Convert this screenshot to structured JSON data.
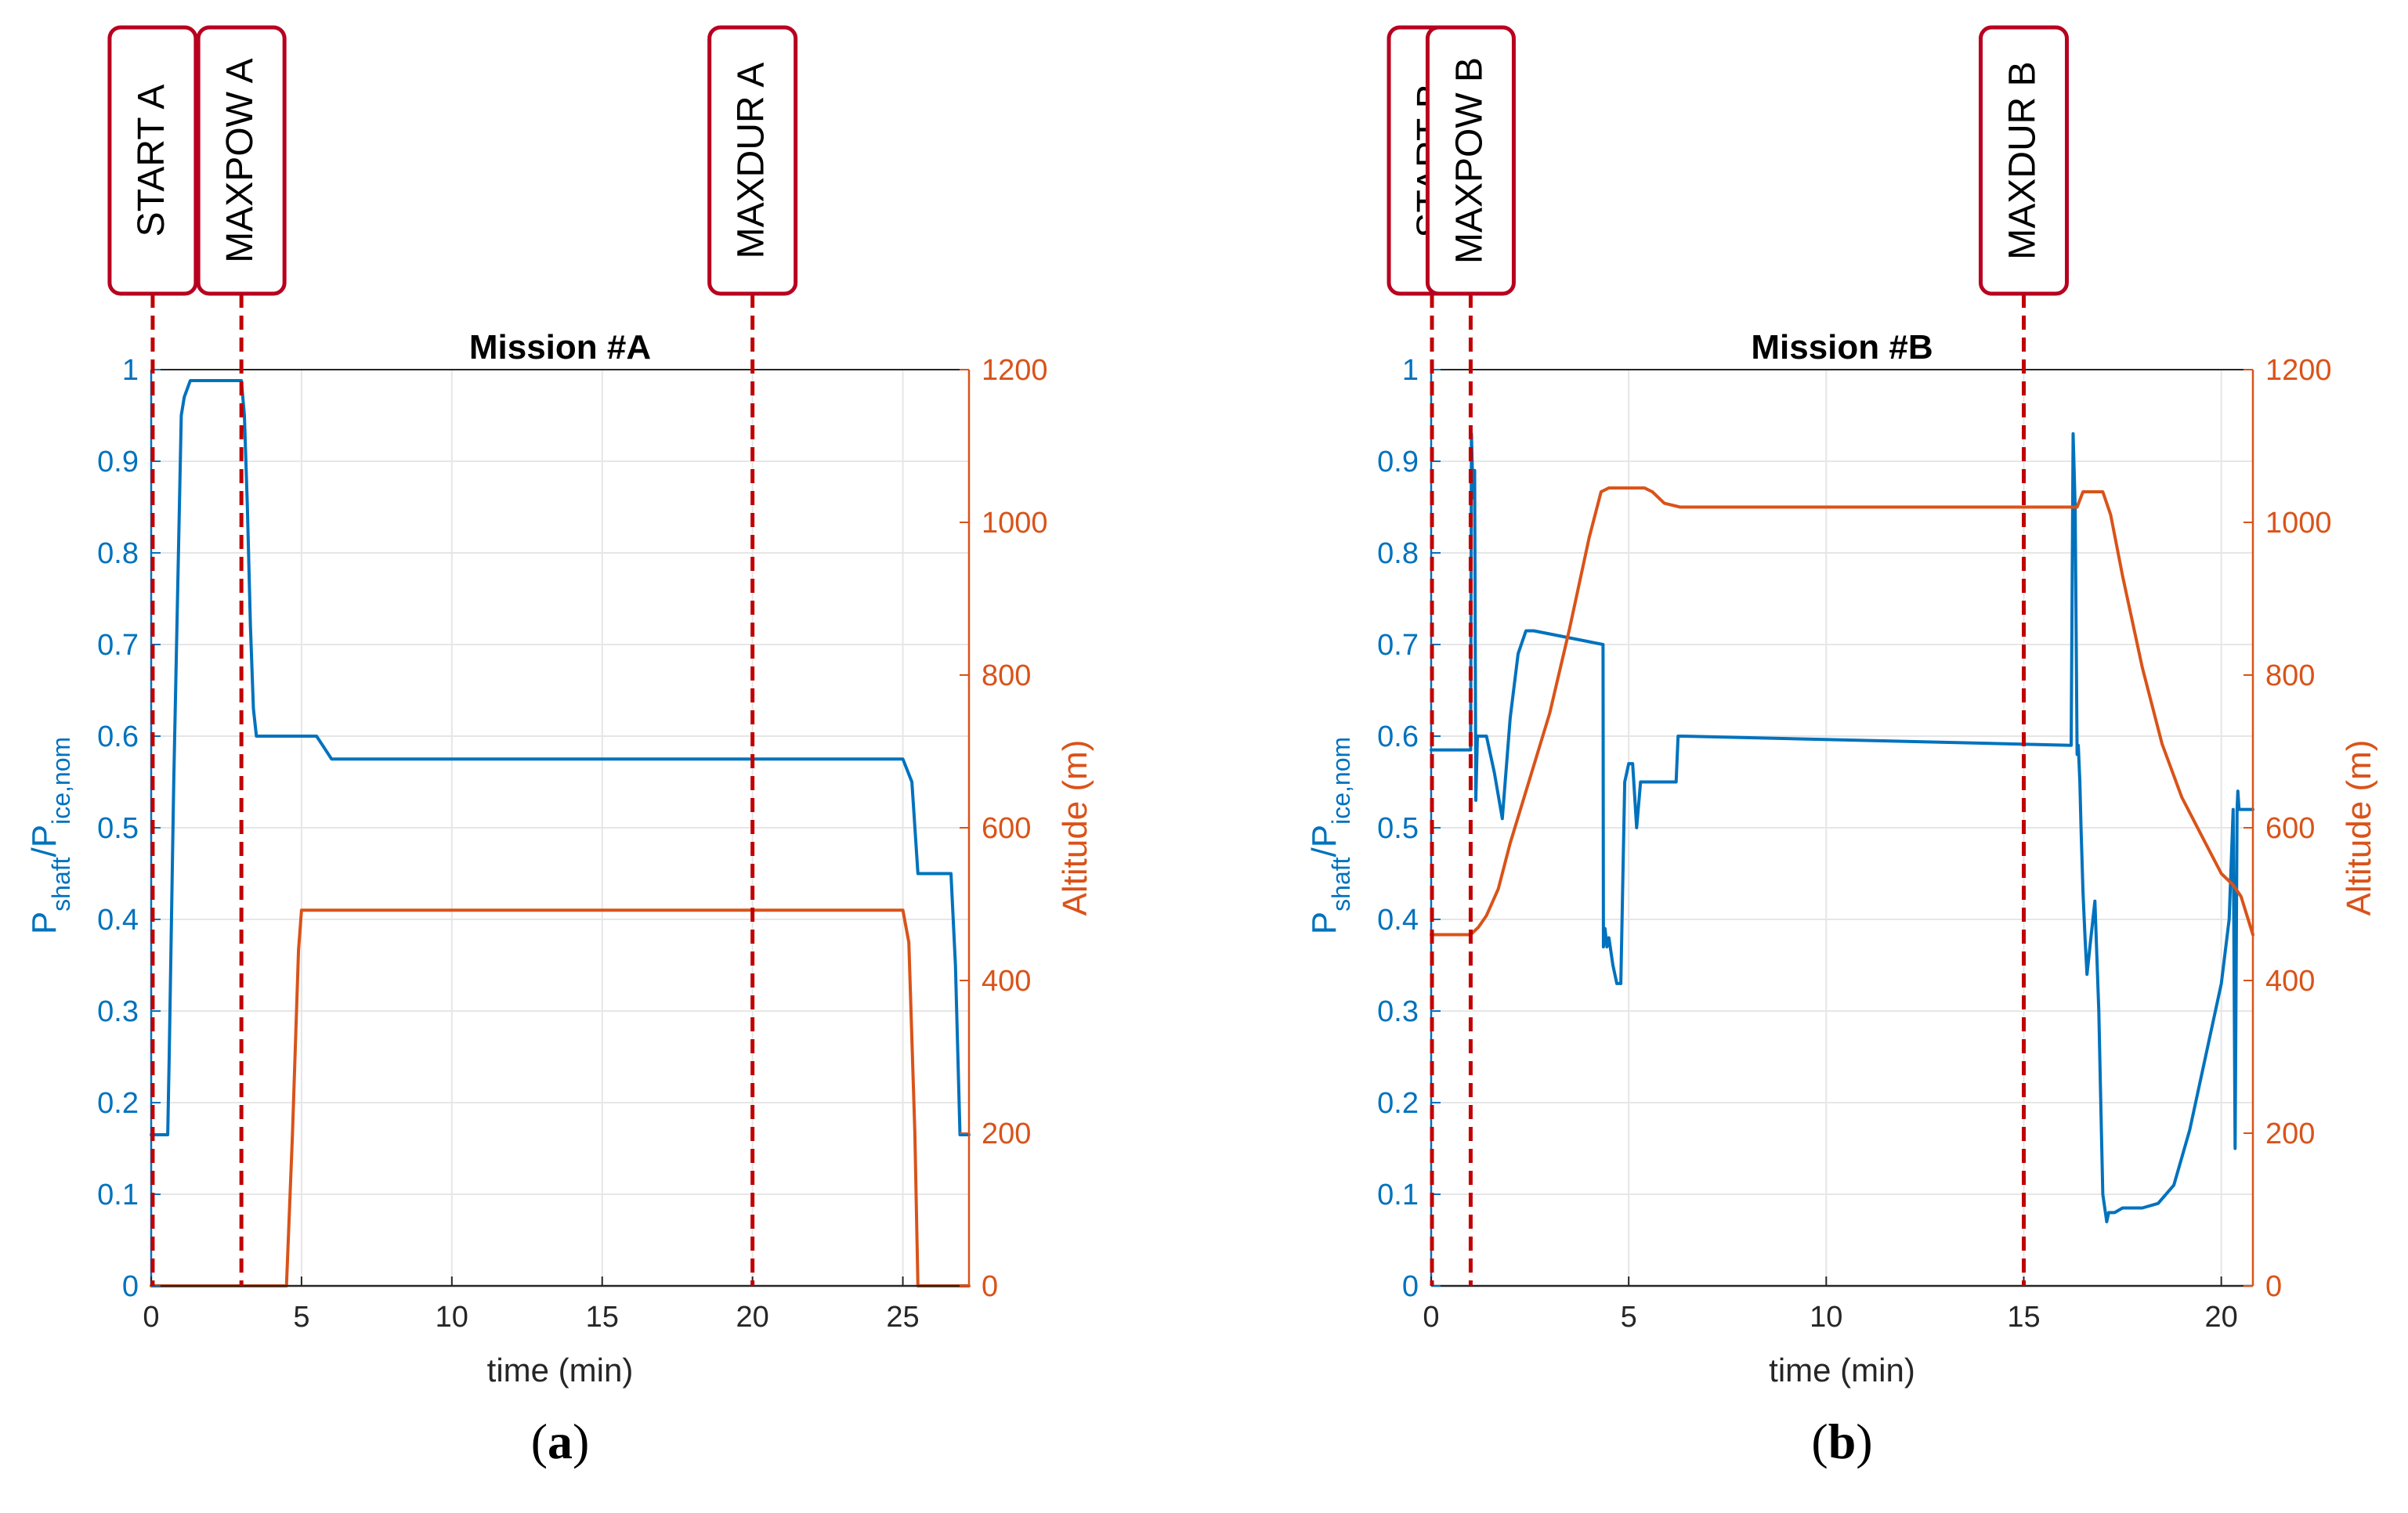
{
  "colors": {
    "power": "#0072bd",
    "altitude": "#d95319",
    "event_line": "#c00000",
    "event_box": "#b8001f",
    "grid": "#e6e6e6",
    "axis": "#262626"
  },
  "chart_data": [
    {
      "type": "line",
      "id": "a",
      "title": "Mission #A",
      "caption_letter": "a",
      "xlabel": "time (min)",
      "ylabel_left": {
        "main": "P",
        "sub1": "shaft",
        "sep": "/P",
        "sub2": "ice,nom"
      },
      "ylabel_right": "Altitude (m)",
      "xlim": [
        0,
        27.2
      ],
      "ylim_left": [
        0,
        1
      ],
      "ylim_right": [
        0,
        1200
      ],
      "xticks": [
        0,
        5,
        10,
        15,
        20,
        25
      ],
      "xtick_labels": [
        "0",
        "5",
        "10",
        "15",
        "20",
        "25"
      ],
      "yticks_left": [
        0,
        0.1,
        0.2,
        0.3,
        0.4,
        0.5,
        0.6,
        0.7,
        0.8,
        0.9,
        1
      ],
      "ytick_labels_left": [
        "0",
        "0.1",
        "0.2",
        "0.3",
        "0.4",
        "0.5",
        "0.6",
        "0.7",
        "0.8",
        "0.9",
        "1"
      ],
      "yticks_right": [
        0,
        200,
        400,
        600,
        800,
        1000,
        1200
      ],
      "ytick_labels_right": [
        "0",
        "200",
        "400",
        "600",
        "800",
        "1000",
        "1200"
      ],
      "grid": true,
      "events": [
        {
          "label": "START A",
          "x": 0.05
        },
        {
          "label": "MAXPOW A",
          "x": 3.0
        },
        {
          "label": "MAXDUR A",
          "x": 20.0
        }
      ],
      "series": [
        {
          "name": "Pshaft/Pice,nom",
          "axis": "left",
          "x": [
            0,
            0.55,
            0.6,
            0.75,
            1.0,
            1.1,
            1.3,
            1.5,
            2.0,
            3.0,
            3.1,
            3.2,
            3.3,
            3.4,
            3.5,
            5.5,
            5.7,
            6.0,
            25.0,
            25.3,
            25.5,
            26.6,
            26.75,
            26.9,
            27.2
          ],
          "y": [
            0.165,
            0.165,
            0.25,
            0.55,
            0.95,
            0.97,
            0.988,
            0.988,
            0.988,
            0.988,
            0.95,
            0.85,
            0.72,
            0.63,
            0.6,
            0.6,
            0.59,
            0.575,
            0.575,
            0.55,
            0.45,
            0.45,
            0.35,
            0.165,
            0.165
          ]
        },
        {
          "name": "Altitude",
          "axis": "right",
          "x": [
            0,
            4.5,
            4.7,
            4.9,
            5.0,
            25.0,
            25.2,
            25.4,
            25.5,
            27.2
          ],
          "y": [
            0,
            0,
            200,
            440,
            492,
            492,
            450,
            200,
            0,
            0
          ]
        }
      ]
    },
    {
      "type": "line",
      "id": "b",
      "title": "Mission #B",
      "caption_letter": "b",
      "xlabel": "time (min)",
      "ylabel_left": {
        "main": "P",
        "sub1": "shaft",
        "sep": "/P",
        "sub2": "ice,nom"
      },
      "ylabel_right": "Altitude (m)",
      "xlim": [
        0,
        20.8
      ],
      "ylim_left": [
        0,
        1
      ],
      "ylim_right": [
        0,
        1200
      ],
      "xticks": [
        0,
        5,
        10,
        15,
        20
      ],
      "xtick_labels": [
        "0",
        "5",
        "10",
        "15",
        "20"
      ],
      "yticks_left": [
        0,
        0.1,
        0.2,
        0.3,
        0.4,
        0.5,
        0.6,
        0.7,
        0.8,
        0.9,
        1
      ],
      "ytick_labels_left": [
        "0",
        "0.1",
        "0.2",
        "0.3",
        "0.4",
        "0.5",
        "0.6",
        "0.7",
        "0.8",
        "0.9",
        "1"
      ],
      "yticks_right": [
        0,
        200,
        400,
        600,
        800,
        1000,
        1200
      ],
      "ytick_labels_right": [
        "0",
        "200",
        "400",
        "600",
        "800",
        "1000",
        "1200"
      ],
      "grid": true,
      "events": [
        {
          "label": "START B",
          "x": 0.02
        },
        {
          "label": "MAXPOW B",
          "x": 1.0
        },
        {
          "label": "MAXDUR B",
          "x": 15.0
        }
      ],
      "series": [
        {
          "name": "Pshaft/Pice,nom",
          "axis": "left",
          "x": [
            0,
            1.0,
            1.02,
            1.06,
            1.1,
            1.13,
            1.17,
            1.2,
            1.25,
            1.4,
            1.6,
            1.8,
            2.0,
            2.2,
            2.4,
            2.6,
            4.35,
            4.36,
            4.4,
            4.45,
            4.5,
            4.6,
            4.7,
            4.8,
            4.9,
            5.0,
            5.1,
            5.2,
            5.3,
            5.4,
            5.45,
            5.5,
            5.55,
            5.6,
            5.7,
            6.2,
            6.25,
            6.3,
            6.35,
            16.2,
            16.25,
            16.3,
            16.35,
            16.38,
            16.42,
            16.45,
            16.5,
            16.55,
            16.6,
            16.7,
            16.8,
            16.9,
            16.95,
            17.0,
            17.1,
            17.15,
            17.2,
            17.3,
            17.5,
            18.0,
            18.4,
            18.8,
            19.2,
            19.6,
            20.0,
            20.2,
            20.3,
            20.35,
            20.4,
            20.42,
            20.45,
            20.5,
            20.8
          ],
          "y": [
            0.585,
            0.585,
            0.93,
            0.86,
            0.89,
            0.53,
            0.6,
            0.6,
            0.6,
            0.6,
            0.56,
            0.51,
            0.62,
            0.69,
            0.715,
            0.715,
            0.7,
            0.37,
            0.39,
            0.37,
            0.38,
            0.35,
            0.33,
            0.33,
            0.55,
            0.57,
            0.57,
            0.5,
            0.55,
            0.55,
            0.55,
            0.55,
            0.55,
            0.55,
            0.55,
            0.55,
            0.6,
            0.6,
            0.6,
            0.59,
            0.93,
            0.85,
            0.58,
            0.59,
            0.55,
            0.5,
            0.43,
            0.38,
            0.34,
            0.38,
            0.42,
            0.3,
            0.2,
            0.1,
            0.07,
            0.08,
            0.08,
            0.08,
            0.085,
            0.085,
            0.09,
            0.11,
            0.17,
            0.25,
            0.33,
            0.4,
            0.52,
            0.15,
            0.52,
            0.54,
            0.52,
            0.52,
            0.52
          ]
        },
        {
          "name": "Altitude",
          "axis": "right",
          "x": [
            0,
            1.0,
            1.2,
            1.4,
            1.7,
            2.0,
            3.0,
            3.5,
            4.0,
            4.3,
            4.5,
            5.4,
            5.6,
            5.9,
            6.3,
            16.35,
            16.5,
            17.0,
            17.2,
            17.5,
            18.0,
            18.5,
            19.0,
            19.5,
            20.0,
            20.3,
            20.5,
            20.8
          ],
          "y": [
            460,
            460,
            470,
            485,
            520,
            580,
            750,
            860,
            980,
            1040,
            1045,
            1045,
            1040,
            1025,
            1020,
            1020,
            1040,
            1040,
            1010,
            930,
            810,
            710,
            640,
            590,
            540,
            525,
            510,
            460
          ]
        }
      ]
    }
  ]
}
